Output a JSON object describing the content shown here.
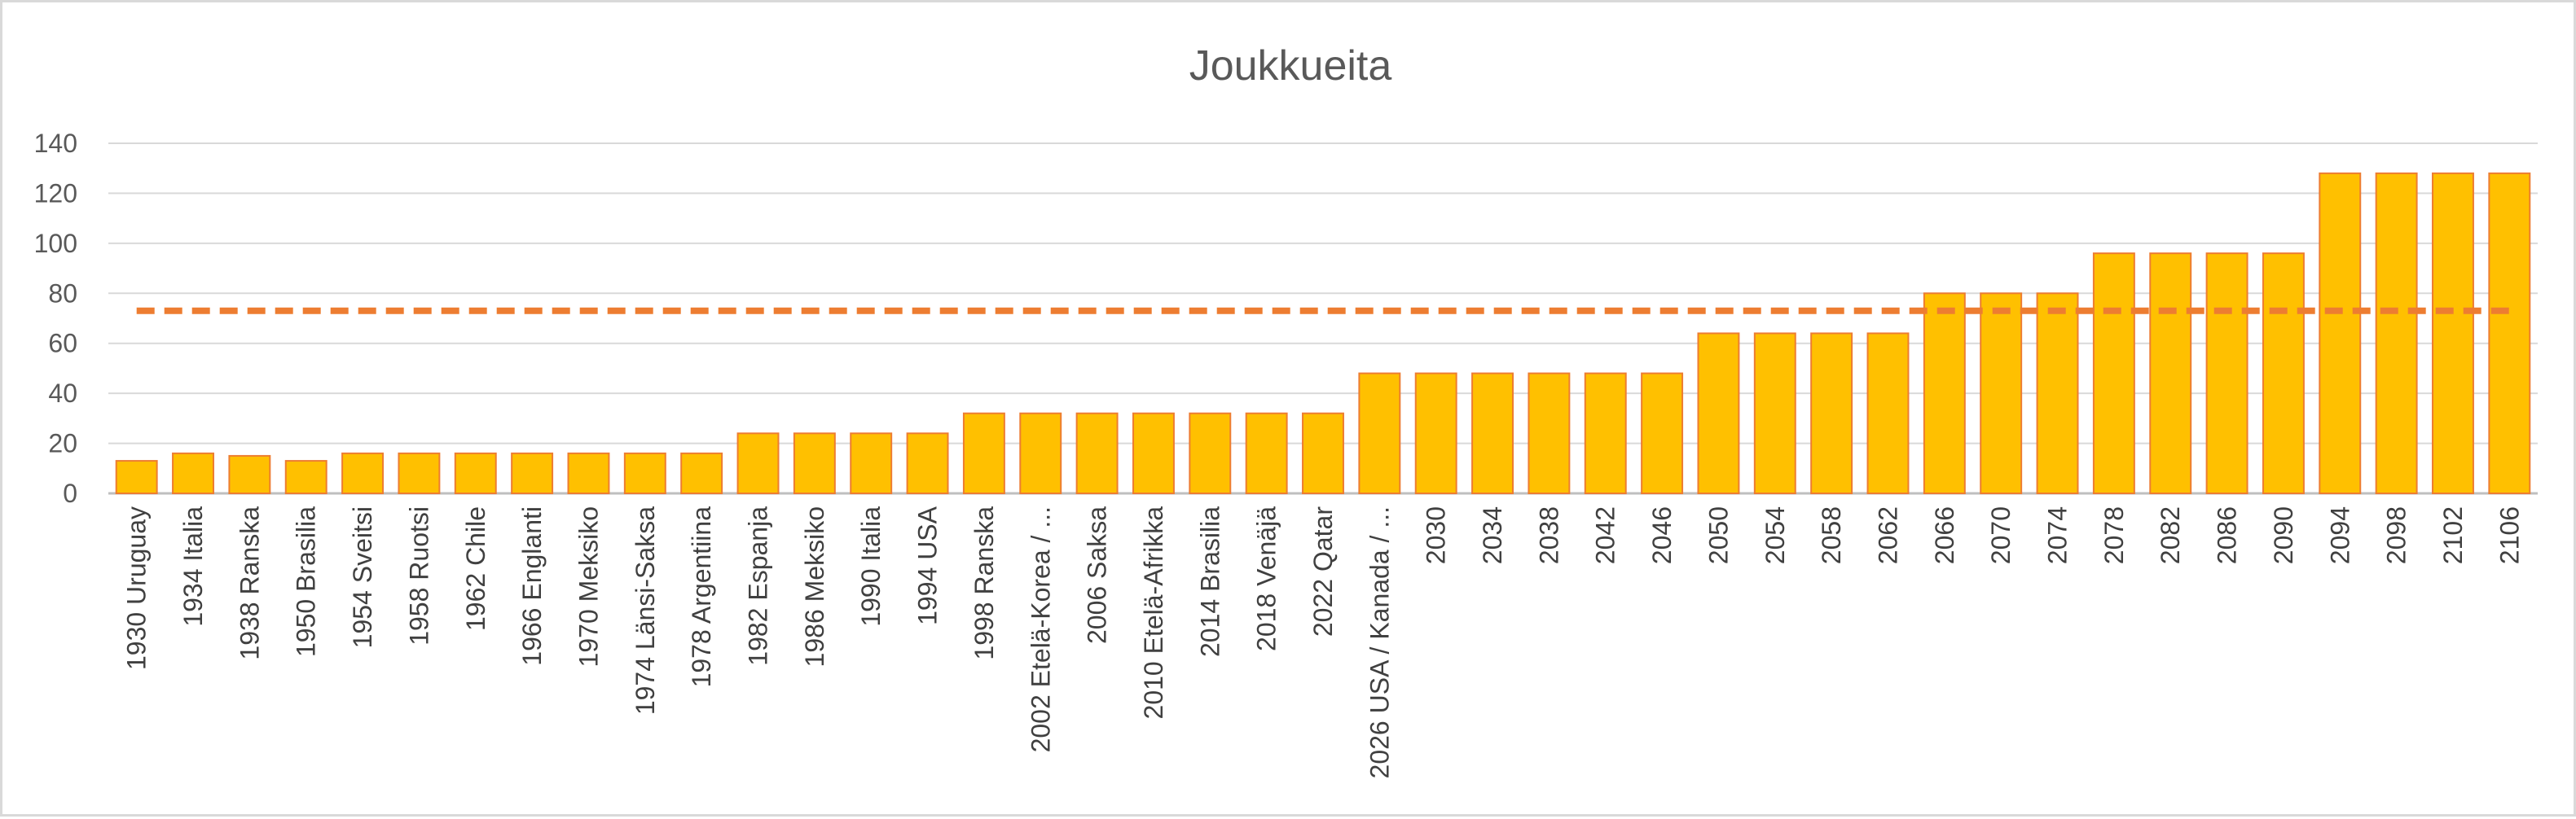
{
  "chart_data": {
    "type": "bar",
    "title": "Joukkueita",
    "xlabel": "",
    "ylabel": "",
    "ylim": [
      0,
      140
    ],
    "yticks": [
      0,
      20,
      40,
      60,
      80,
      100,
      120,
      140
    ],
    "grid": true,
    "legend": "none",
    "categories": [
      "1930 Uruguay",
      "1934 Italia",
      "1938 Ranska",
      "1950 Brasilia",
      "1954 Sveitsi",
      "1958 Ruotsi",
      "1962 Chile",
      "1966 Englanti",
      "1970 Meksiko",
      "1974 Länsi-Saksa",
      "1978 Argentiina",
      "1982 Espanja",
      "1986 Meksiko",
      "1990 Italia",
      "1994 USA",
      "1998 Ranska",
      "2002 Etelä-Korea / ...",
      "2006 Saksa",
      "2010 Etelä-Afrikka",
      "2014 Brasilia",
      "2018 Venäjä",
      "2022 Qatar",
      "2026 USA / Kanada / ...",
      "2030",
      "2034",
      "2038",
      "2042",
      "2046",
      "2050",
      "2054",
      "2058",
      "2062",
      "2066",
      "2070",
      "2074",
      "2078",
      "2082",
      "2086",
      "2090",
      "2094",
      "2098",
      "2102",
      "2106"
    ],
    "series": [
      {
        "type": "bar",
        "values": [
          13,
          16,
          15,
          13,
          16,
          16,
          16,
          16,
          16,
          16,
          16,
          24,
          24,
          24,
          24,
          32,
          32,
          32,
          32,
          32,
          32,
          32,
          48,
          48,
          48,
          48,
          48,
          48,
          64,
          64,
          64,
          64,
          80,
          80,
          80,
          96,
          96,
          96,
          96,
          128,
          128,
          128,
          128
        ],
        "fill_color": "#FFC000",
        "edge_color": "#ED7D31"
      },
      {
        "type": "line",
        "style": "dashed",
        "values": [
          73,
          73,
          73,
          73,
          73,
          73,
          73,
          73,
          73,
          73,
          73,
          73,
          73,
          73,
          73,
          73,
          73,
          73,
          73,
          73,
          73,
          73,
          73,
          73,
          73,
          73,
          73,
          73,
          73,
          73,
          73,
          73,
          73,
          73,
          73,
          73,
          73,
          73,
          73,
          73,
          73,
          73,
          73
        ],
        "color": "#ED7D31"
      }
    ],
    "colors": {
      "gridline": "#D9D9D9",
      "axis": "#BFBFBF"
    }
  }
}
